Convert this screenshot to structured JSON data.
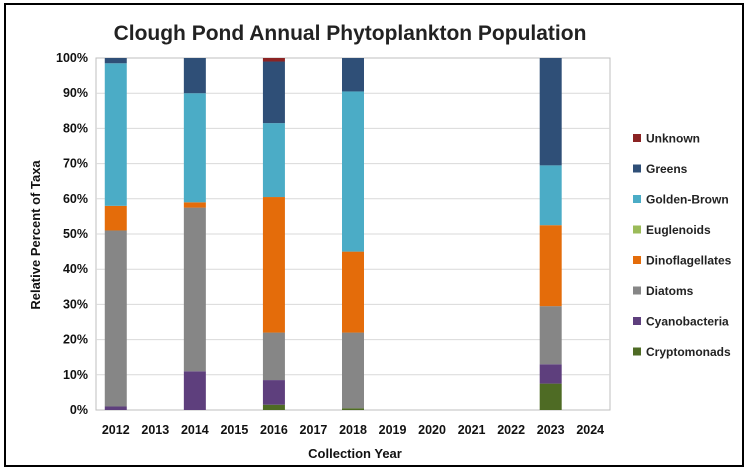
{
  "chart_data": {
    "type": "bar",
    "stacked": true,
    "title": "Clough Pond Annual Phytoplankton Population",
    "xlabel": "Collection Year",
    "ylabel": "Relative Percent of Taxa",
    "ylim": [
      0,
      100
    ],
    "yticks": [
      0,
      10,
      20,
      30,
      40,
      50,
      60,
      70,
      80,
      90,
      100
    ],
    "ytick_suffix": "%",
    "categories": [
      "2012",
      "2013",
      "2014",
      "2015",
      "2016",
      "2017",
      "2018",
      "2019",
      "2020",
      "2021",
      "2022",
      "2023",
      "2024"
    ],
    "grid": true,
    "legend_position": "right",
    "series": [
      {
        "name": "Cryptomonads",
        "color": "#4e6b24",
        "values": [
          0,
          0,
          0,
          0,
          1.5,
          0,
          0.5,
          0,
          0,
          0,
          0,
          7.5,
          0
        ]
      },
      {
        "name": "Cyanobacteria",
        "color": "#5e3f7d",
        "values": [
          1,
          0,
          11,
          0,
          7,
          0,
          0,
          0,
          0,
          0,
          0,
          5.5,
          0
        ]
      },
      {
        "name": "Diatoms",
        "color": "#868686",
        "values": [
          50,
          0,
          46.5,
          0,
          13.5,
          0,
          21.5,
          0,
          0,
          0,
          0,
          16.5,
          0
        ]
      },
      {
        "name": "Dinoflagellates",
        "color": "#e46c0a",
        "values": [
          7,
          0,
          1.5,
          0,
          38.5,
          0,
          23,
          0,
          0,
          0,
          0,
          23,
          0
        ]
      },
      {
        "name": "Euglenoids",
        "color": "#9bbb59",
        "values": [
          0,
          0,
          0,
          0,
          0,
          0,
          0,
          0,
          0,
          0,
          0,
          0,
          0
        ]
      },
      {
        "name": "Golden-Brown",
        "color": "#4bacc6",
        "values": [
          40.5,
          0,
          31,
          0,
          21,
          0,
          45.5,
          0,
          0,
          0,
          0,
          17,
          0
        ]
      },
      {
        "name": "Greens",
        "color": "#2f4f77",
        "values": [
          1.5,
          0,
          10,
          0,
          17.5,
          0,
          9.5,
          0,
          0,
          0,
          0,
          30.5,
          0
        ]
      },
      {
        "name": "Unknown",
        "color": "#8b2323",
        "values": [
          0,
          0,
          0,
          0,
          1,
          0,
          0,
          0,
          0,
          0,
          0,
          0,
          0
        ]
      }
    ]
  }
}
